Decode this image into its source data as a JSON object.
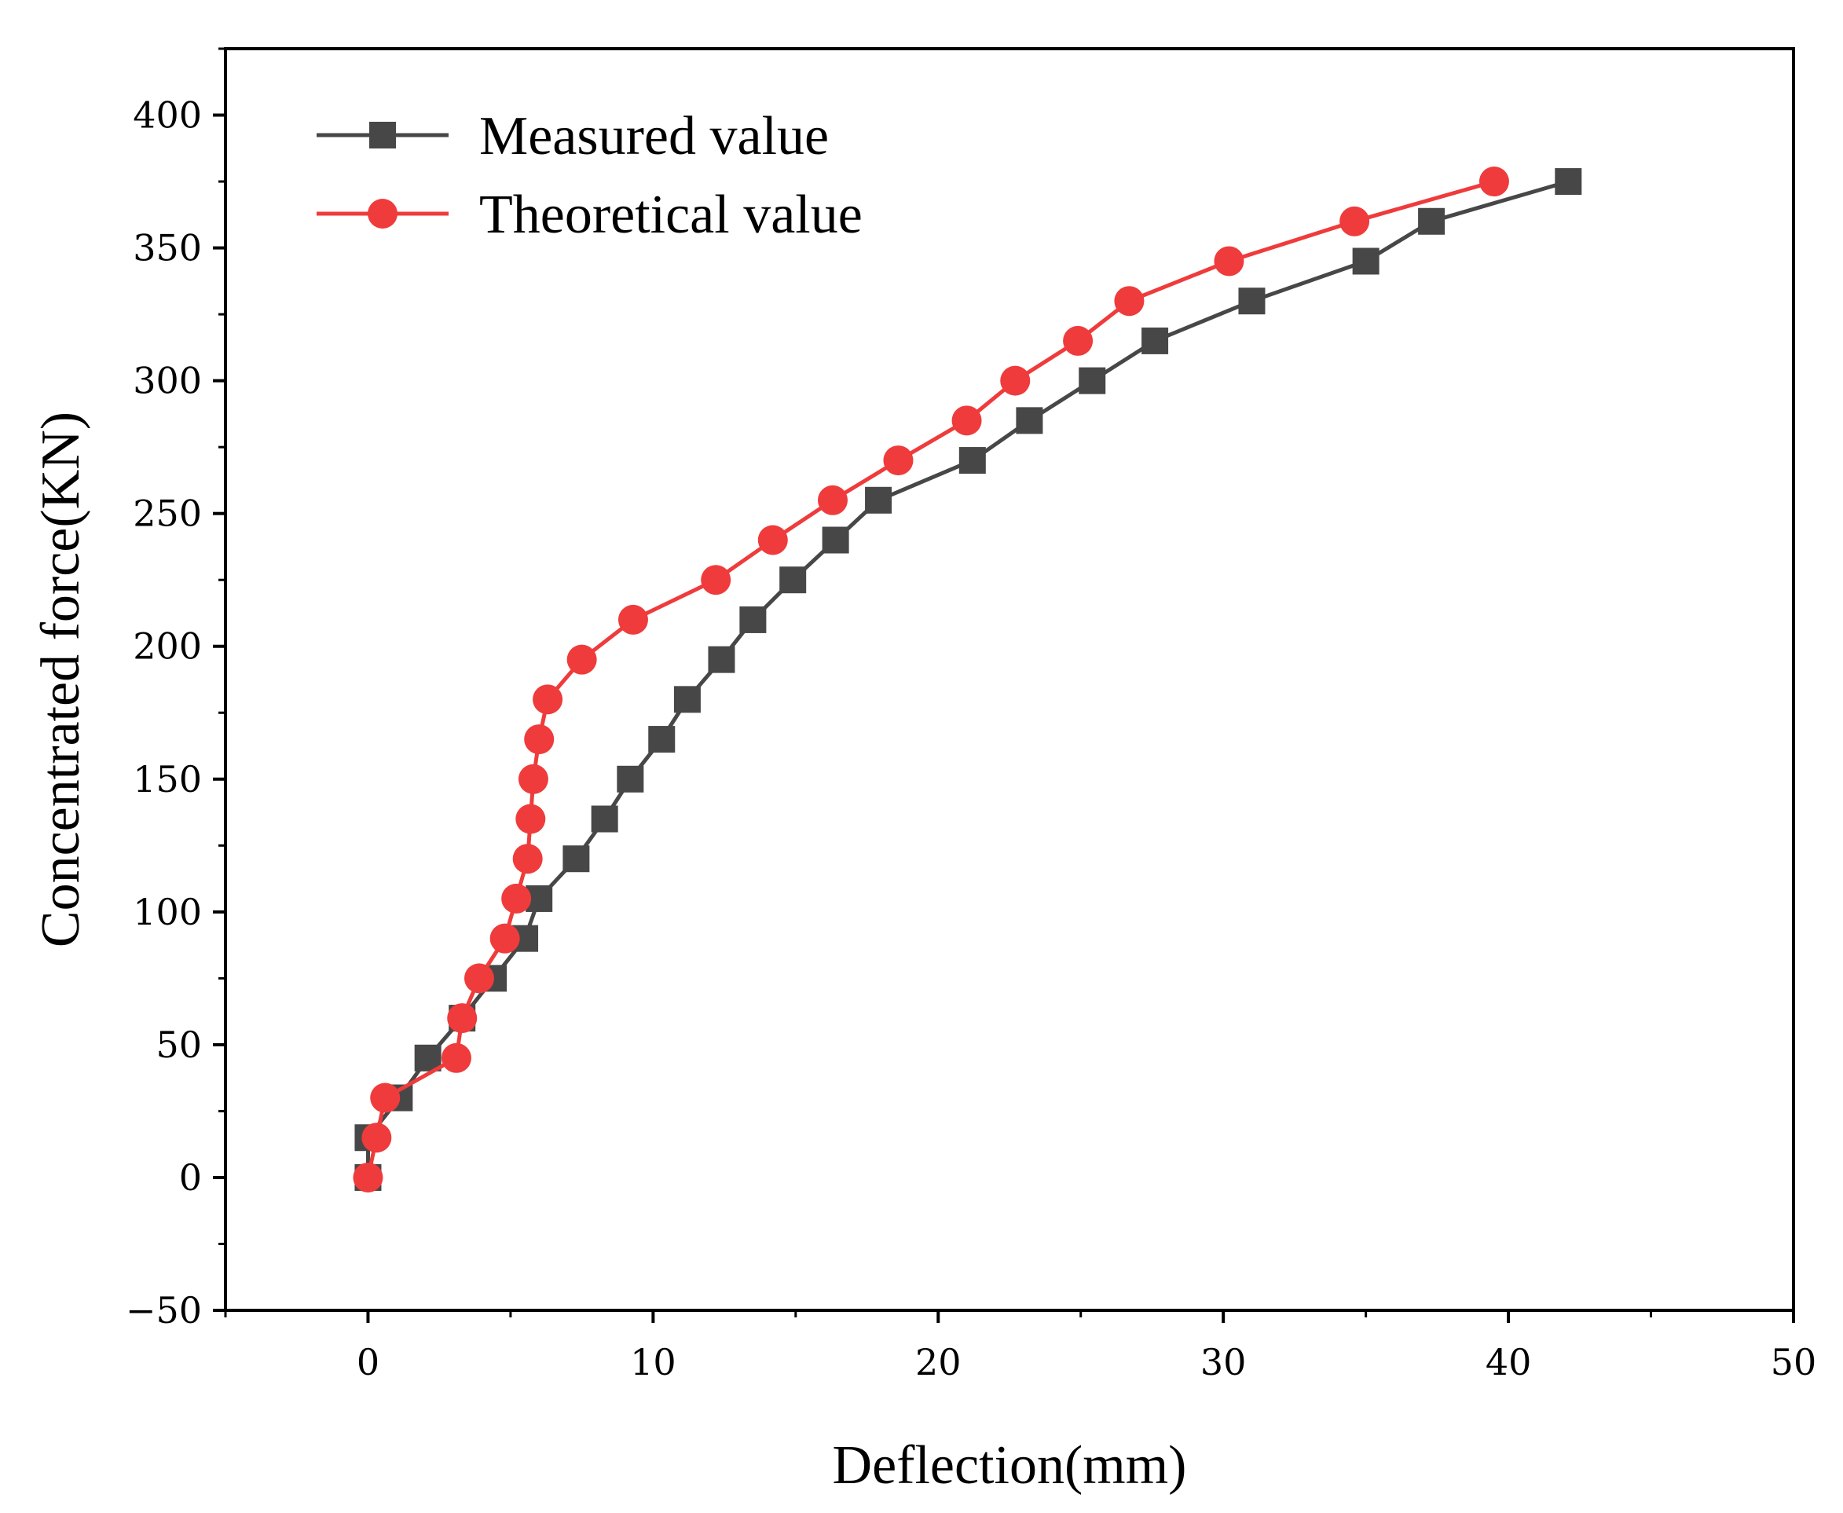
{
  "chart_data": {
    "type": "line",
    "title": "",
    "xlabel": "Deflection(mm)",
    "ylabel": "Concentrated force(KN)",
    "xlim": [
      -5,
      50
    ],
    "ylim": [
      -50,
      425
    ],
    "xticks": [
      0,
      10,
      20,
      30,
      40,
      50
    ],
    "yticks": [
      -50,
      0,
      50,
      100,
      150,
      200,
      250,
      300,
      350,
      400
    ],
    "xtick_labels": [
      "0",
      "10",
      "20",
      "30",
      "40",
      "50"
    ],
    "ytick_labels": [
      "−50",
      "0",
      "50",
      "100",
      "150",
      "200",
      "250",
      "300",
      "350",
      "400"
    ],
    "grid": false,
    "legend_position": "top-left",
    "series": [
      {
        "name": "Measured value",
        "color": "#474747",
        "marker": "square",
        "points": [
          [
            0,
            0
          ],
          [
            0,
            15
          ],
          [
            1.1,
            30
          ],
          [
            2.1,
            45
          ],
          [
            3.3,
            60
          ],
          [
            4.4,
            75
          ],
          [
            5.5,
            90
          ],
          [
            6.0,
            105
          ],
          [
            7.3,
            120
          ],
          [
            8.3,
            135
          ],
          [
            9.2,
            150
          ],
          [
            10.3,
            165
          ],
          [
            11.2,
            180
          ],
          [
            12.4,
            195
          ],
          [
            13.5,
            210
          ],
          [
            14.9,
            225
          ],
          [
            16.4,
            240
          ],
          [
            17.9,
            255
          ],
          [
            21.2,
            270
          ],
          [
            23.2,
            285
          ],
          [
            25.4,
            300
          ],
          [
            27.6,
            315
          ],
          [
            31.0,
            330
          ],
          [
            35.0,
            345
          ],
          [
            37.3,
            360
          ],
          [
            42.1,
            375
          ]
        ]
      },
      {
        "name": "Theoretical value",
        "color": "#ef3b3b",
        "marker": "circle",
        "points": [
          [
            0,
            0
          ],
          [
            0.3,
            15
          ],
          [
            0.6,
            30
          ],
          [
            3.1,
            45
          ],
          [
            3.3,
            60
          ],
          [
            3.9,
            75
          ],
          [
            4.8,
            90
          ],
          [
            5.2,
            105
          ],
          [
            5.6,
            120
          ],
          [
            5.7,
            135
          ],
          [
            5.8,
            150
          ],
          [
            6.0,
            165
          ],
          [
            6.3,
            180
          ],
          [
            7.5,
            195
          ],
          [
            9.3,
            210
          ],
          [
            12.2,
            225
          ],
          [
            14.2,
            240
          ],
          [
            16.3,
            255
          ],
          [
            18.6,
            270
          ],
          [
            21.0,
            285
          ],
          [
            22.7,
            300
          ],
          [
            24.9,
            315
          ],
          [
            26.7,
            330
          ],
          [
            30.2,
            345
          ],
          [
            34.6,
            360
          ],
          [
            39.5,
            375
          ]
        ]
      }
    ]
  }
}
